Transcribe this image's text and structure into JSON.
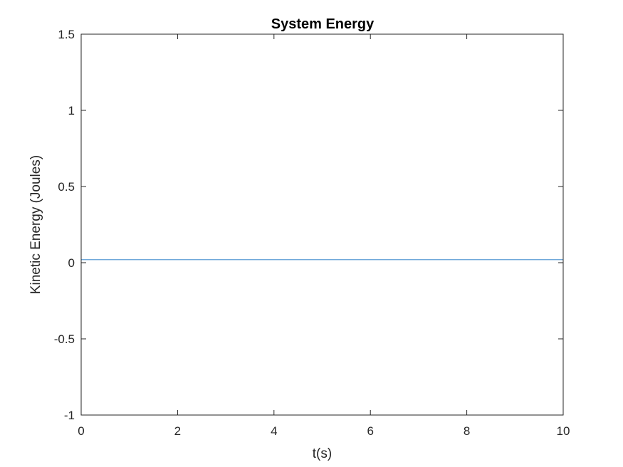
{
  "chart_data": {
    "type": "line",
    "title": "System Energy",
    "xlabel": "t(s)",
    "ylabel": "Kinetic Energy (Joules)",
    "xlim": [
      0,
      10
    ],
    "ylim": [
      -1,
      1.5
    ],
    "xticks": [
      0,
      2,
      4,
      6,
      8,
      10
    ],
    "yticks": [
      -1,
      -0.5,
      0,
      0.5,
      1,
      1.5
    ],
    "xtick_labels": [
      "0",
      "2",
      "4",
      "6",
      "8",
      "10"
    ],
    "ytick_labels": [
      "-1",
      "-0.5",
      "0",
      "0.5",
      "1",
      "1.5"
    ],
    "grid": false,
    "box": true,
    "series": [
      {
        "color": "#5b9bd5",
        "x": [
          0,
          10
        ],
        "y": [
          0.02,
          0.02
        ]
      }
    ],
    "colors": {
      "axis": "#262626",
      "title": "#000000"
    }
  }
}
